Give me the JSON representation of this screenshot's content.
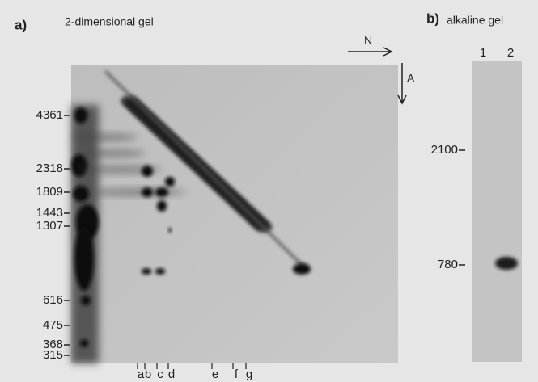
{
  "panel_a": {
    "label": "a)",
    "title": "2-dimensional gel",
    "direction_n": "N",
    "direction_a": "A",
    "markers": [
      4361,
      2318,
      1809,
      1443,
      1307,
      616,
      475,
      368,
      315
    ],
    "spot_labels": [
      "a",
      "b",
      "c",
      "d",
      "e",
      "f",
      "g"
    ]
  },
  "panel_b": {
    "label": "b)",
    "title": "alkaline gel",
    "lanes": [
      "1",
      "2"
    ],
    "markers": [
      2100,
      780
    ]
  }
}
